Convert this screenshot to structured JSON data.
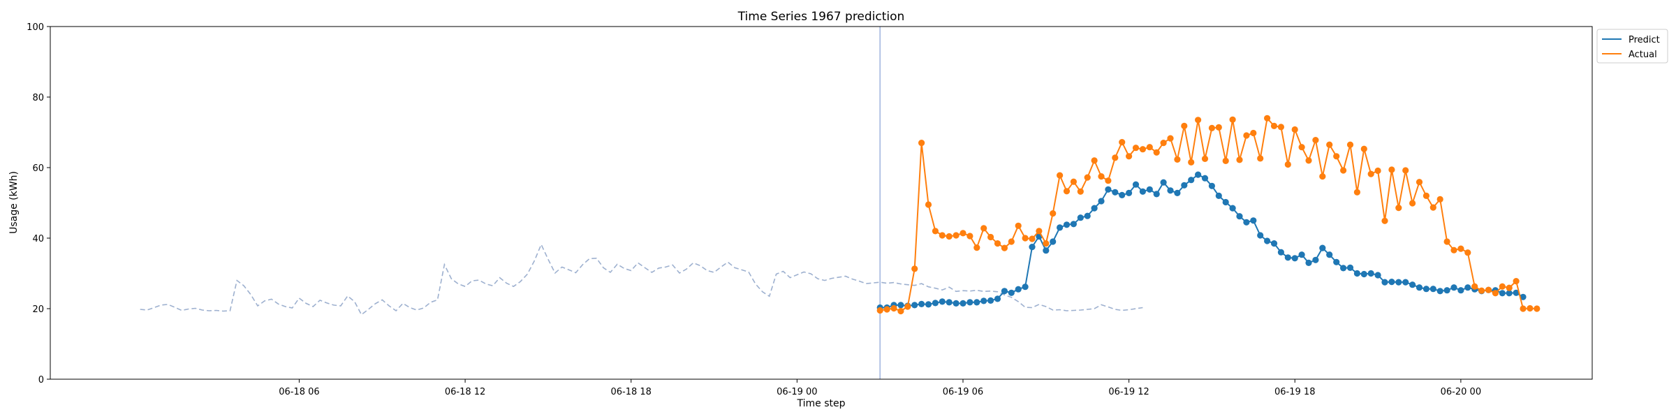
{
  "chart_data": {
    "type": "line",
    "title": "Time Series 1967 prediction",
    "xlabel": "Time step",
    "ylabel": "Usage (kWh)",
    "ylim": [
      0,
      100
    ],
    "yticks": [
      0,
      20,
      40,
      60,
      80,
      100
    ],
    "xlim": [
      "2024-06-17 21:00",
      "2024-06-20 04:45"
    ],
    "xticks": [
      {
        "label": "06-18 06",
        "t": "2024-06-18 06:00"
      },
      {
        "label": "06-18 12",
        "t": "2024-06-18 12:00"
      },
      {
        "label": "06-18 18",
        "t": "2024-06-18 18:00"
      },
      {
        "label": "06-19 00",
        "t": "2024-06-19 00:00"
      },
      {
        "label": "06-19 06",
        "t": "2024-06-19 06:00"
      },
      {
        "label": "06-19 12",
        "t": "2024-06-19 12:00"
      },
      {
        "label": "06-19 18",
        "t": "2024-06-19 18:00"
      },
      {
        "label": "06-20 00",
        "t": "2024-06-20 00:00"
      }
    ],
    "forecast_start": "2024-06-19 03:00",
    "legend_position": "top-right outside",
    "grid": false,
    "history": {
      "start": "2024-06-18 00:15",
      "step_minutes": 15,
      "style": "dashed",
      "color": "#9db0cf",
      "values": [
        19.8,
        19.6,
        20.3,
        21.0,
        21.2,
        20.4,
        19.5,
        19.9,
        20.1,
        19.6,
        19.4,
        19.5,
        19.3,
        19.4,
        28.0,
        26.5,
        24.0,
        20.8,
        22.2,
        22.7,
        21.3,
        20.6,
        20.2,
        23.0,
        21.5,
        20.6,
        22.4,
        21.6,
        21.0,
        20.8,
        23.6,
        22.0,
        18.3,
        19.8,
        21.4,
        22.5,
        20.8,
        19.4,
        21.5,
        20.3,
        19.6,
        20.2,
        21.8,
        22.5,
        32.5,
        28.5,
        27.0,
        26.3,
        27.9,
        28.1,
        27.0,
        26.5,
        28.8,
        27.2,
        26.3,
        27.7,
        29.8,
        33.5,
        38.2,
        34.0,
        30.1,
        31.8,
        31.0,
        30.2,
        32.5,
        34.2,
        34.3,
        31.6,
        30.3,
        32.6,
        31.4,
        30.8,
        33.0,
        31.6,
        30.3,
        31.5,
        31.8,
        32.4,
        30.1,
        31.2,
        33.0,
        32.2,
        30.8,
        30.3,
        31.8,
        33.2,
        31.6,
        31.0,
        30.4,
        27.0,
        24.8,
        23.5,
        29.8,
        30.6,
        28.8,
        29.6,
        30.4,
        29.9,
        28.5,
        28.0,
        28.6,
        28.9,
        29.2,
        28.4,
        27.8,
        27.1,
        27.3,
        27.5,
        27.2,
        27.4,
        27.0,
        26.8,
        26.6,
        27.1,
        26.2,
        25.8,
        25.3,
        26.1,
        24.9,
        25.1,
        25.0,
        25.2,
        24.9,
        25.0,
        24.8,
        23.9,
        23.2,
        22.0,
        20.4,
        20.3,
        21.2,
        20.6,
        19.6,
        19.7,
        19.4,
        19.5,
        19.6,
        19.8,
        20.0,
        21.1,
        20.5,
        19.8,
        19.5,
        19.7,
        20.0,
        20.3
      ]
    },
    "series": [
      {
        "name": "Predict",
        "color": "#1f77b4",
        "start": "2024-06-19 03:00",
        "step_minutes": 15,
        "values": [
          20.3,
          20.3,
          21.0,
          21.0,
          20.8,
          21.0,
          21.3,
          21.2,
          21.6,
          22.0,
          21.8,
          21.5,
          21.5,
          21.8,
          21.8,
          22.2,
          22.3,
          22.8,
          25.0,
          24.5,
          25.5,
          26.2,
          37.5,
          40.5,
          36.5,
          39.0,
          43.0,
          43.8,
          44.0,
          45.8,
          46.3,
          48.5,
          50.5,
          53.8,
          53.0,
          52.2,
          52.8,
          55.2,
          53.2,
          53.8,
          52.5,
          55.8,
          53.5,
          52.8,
          55.0,
          56.5,
          58.0,
          57.0,
          54.8,
          52.0,
          50.2,
          48.5,
          46.2,
          44.5,
          45.0,
          40.8,
          39.2,
          38.5,
          36.0,
          34.5,
          34.3,
          35.3,
          33.0,
          33.8,
          37.2,
          35.3,
          33.2,
          31.5,
          31.6,
          30.0,
          29.8,
          30.0,
          29.5,
          27.5,
          27.6,
          27.5,
          27.5,
          26.8,
          26.0,
          25.6,
          25.6,
          25.0,
          25.2,
          26.0,
          25.2,
          26.0,
          25.5,
          25.0,
          25.3,
          25.2,
          24.4,
          24.4,
          24.5,
          23.3
        ]
      },
      {
        "name": "Actual",
        "color": "#ff7f0e",
        "start": "2024-06-19 03:00",
        "step_minutes": 15,
        "values": [
          19.5,
          19.8,
          20.1,
          19.3,
          20.6,
          31.3,
          67.0,
          49.5,
          42.0,
          40.8,
          40.5,
          40.8,
          41.4,
          40.6,
          37.3,
          42.8,
          40.3,
          38.5,
          37.2,
          39.0,
          43.5,
          40.0,
          39.8,
          42.0,
          38.5,
          47.0,
          57.8,
          53.3,
          56.0,
          53.2,
          57.2,
          62.0,
          57.5,
          56.3,
          62.8,
          67.2,
          63.2,
          65.6,
          65.2,
          65.8,
          64.3,
          67.0,
          68.3,
          62.3,
          71.8,
          61.5,
          73.5,
          62.5,
          71.2,
          71.4,
          61.9,
          73.6,
          62.2,
          69.1,
          69.8,
          62.6,
          74.0,
          71.8,
          71.5,
          60.9,
          70.8,
          65.8,
          62.0,
          67.8,
          57.5,
          66.5,
          63.2,
          59.2,
          66.5,
          53.0,
          65.3,
          58.2,
          59.1,
          44.9,
          59.4,
          48.6,
          59.2,
          49.9,
          55.9,
          52.0,
          48.7,
          51.0,
          39.0,
          36.6,
          37.0,
          35.9,
          26.3,
          25.1,
          25.3,
          24.4,
          26.3,
          25.9,
          27.8,
          20.0,
          20.1,
          20.0
        ]
      }
    ],
    "legend": [
      {
        "label": "Predict",
        "color": "#1f77b4"
      },
      {
        "label": "Actual",
        "color": "#ff7f0e"
      }
    ]
  }
}
